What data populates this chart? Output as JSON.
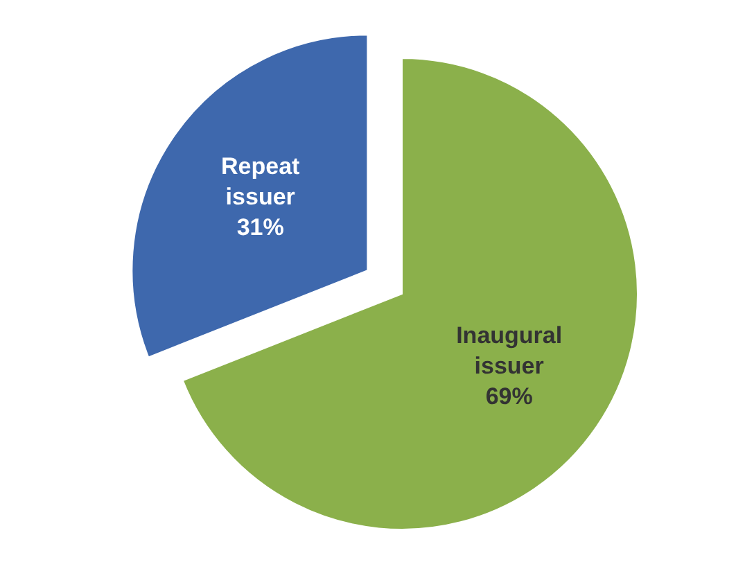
{
  "chart_data": {
    "type": "pie",
    "categories": [
      "Inaugural issuer",
      "Repeat issuer"
    ],
    "values": [
      69,
      31
    ],
    "value_labels": [
      "69%",
      "31%"
    ],
    "colors": [
      "#8bb04b",
      "#3e68ad"
    ]
  }
}
